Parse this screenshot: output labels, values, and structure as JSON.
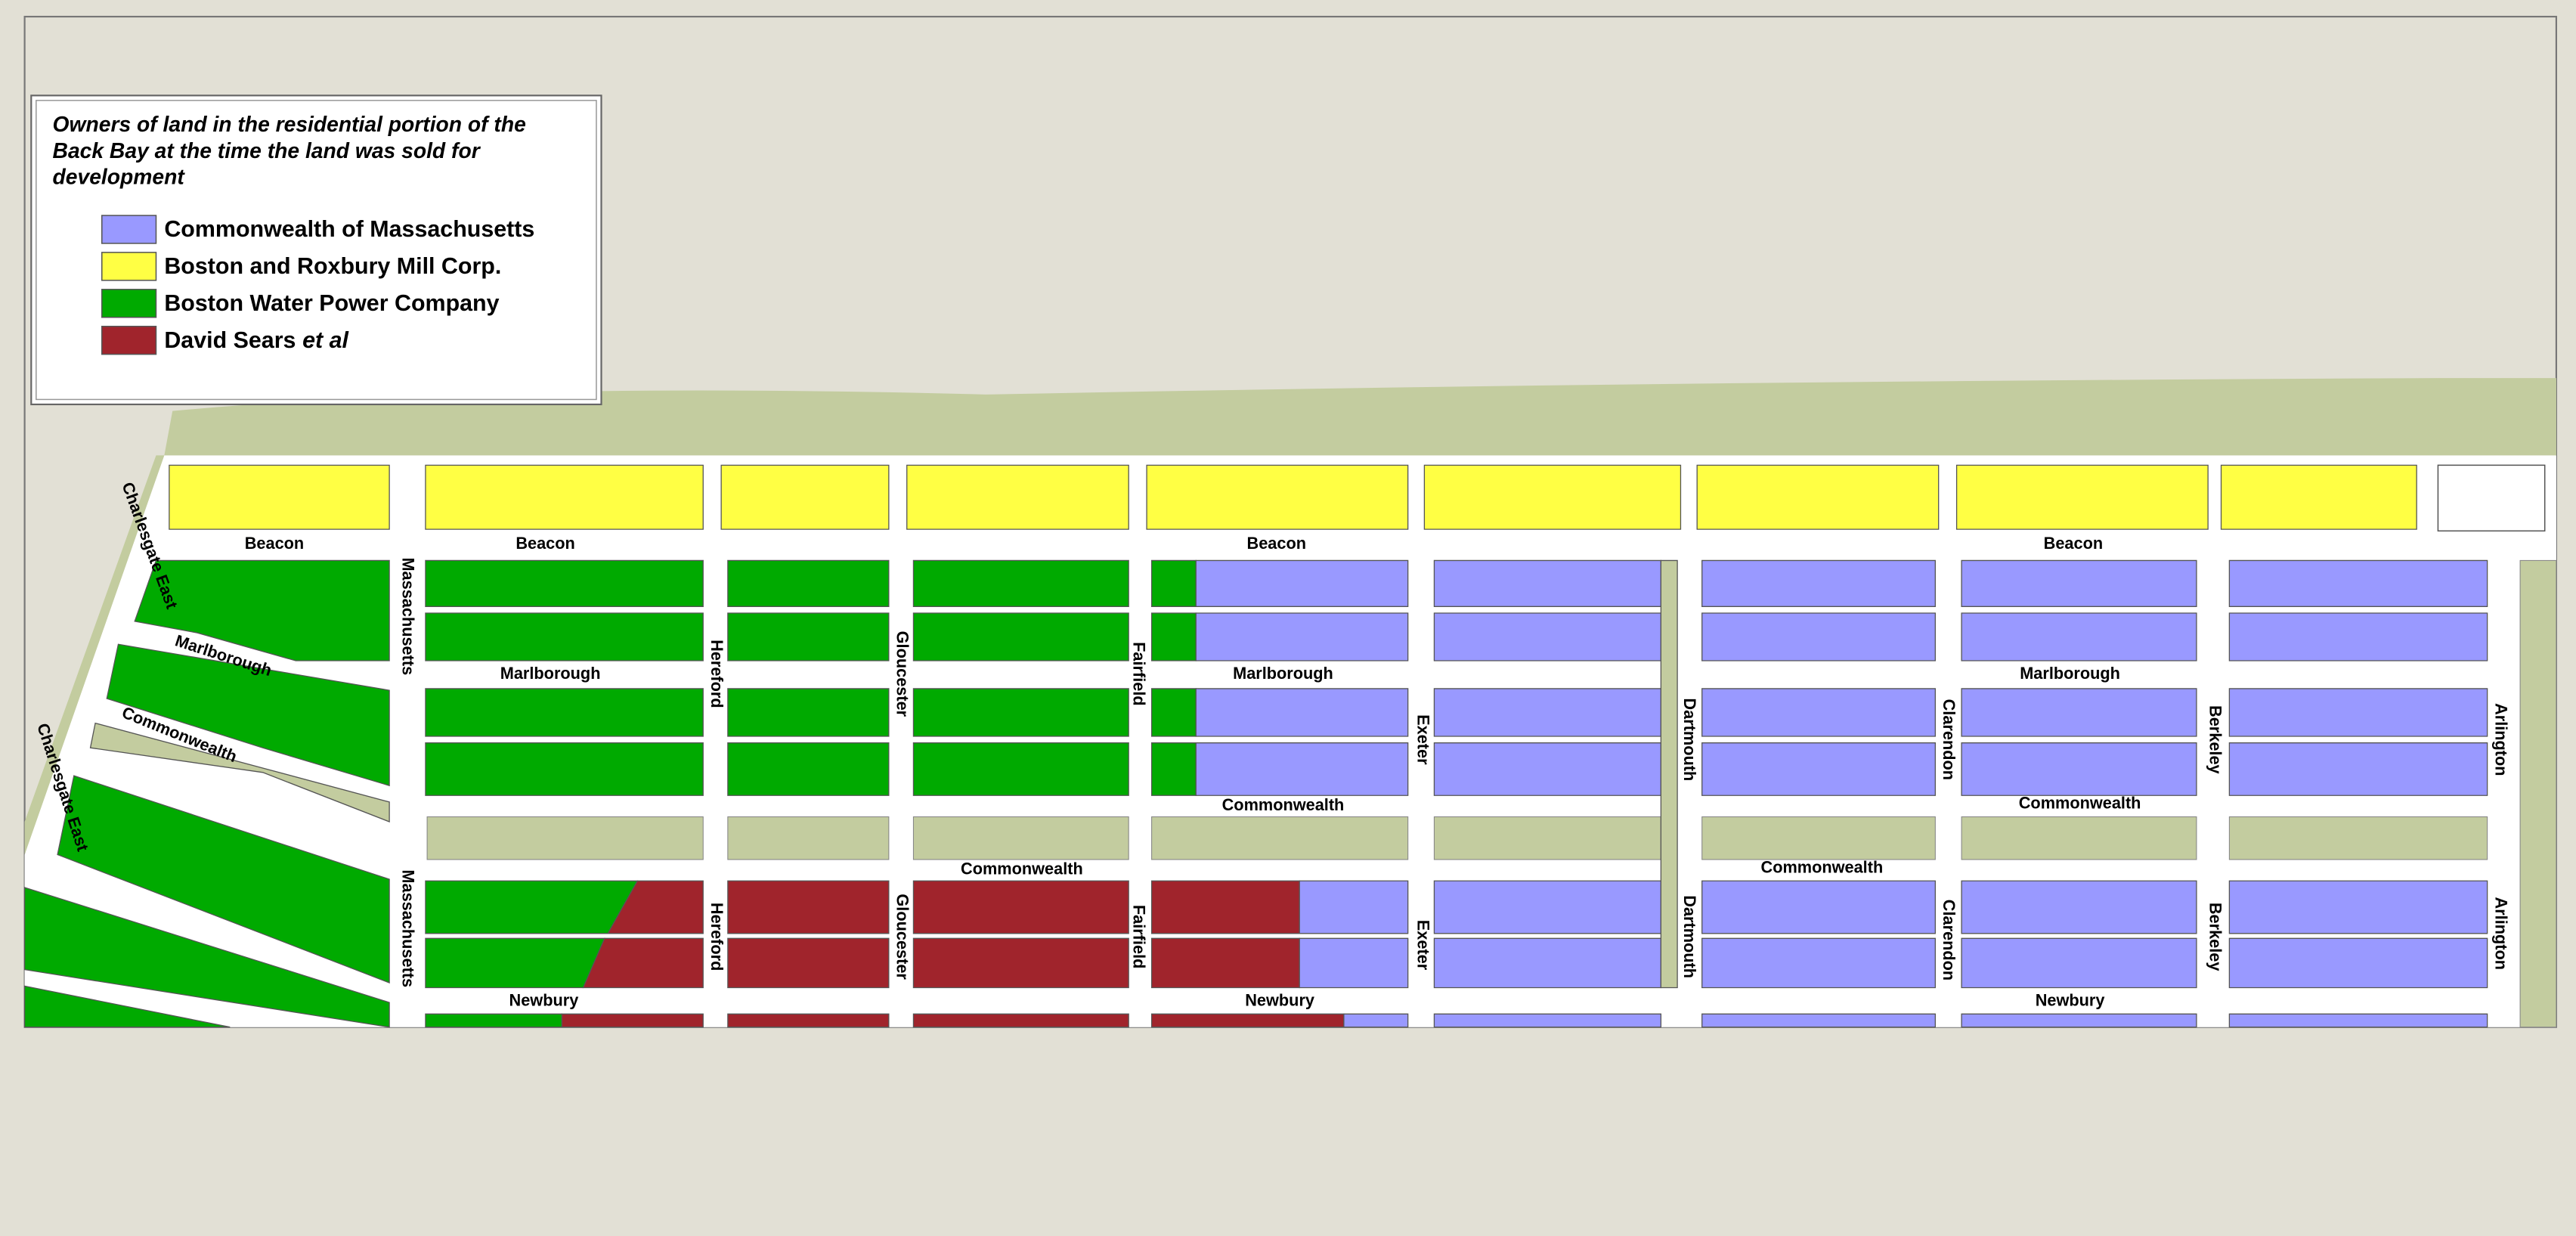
{
  "legend": {
    "title_lines": [
      "Owners of land in the residential portion of the",
      "Back Bay at the time the land was sold for",
      "development"
    ],
    "items": [
      {
        "label": "Commonwealth of Massachusetts",
        "color": "#9999ff"
      },
      {
        "label": "Boston and Roxbury Mill Corp.",
        "color": "#ffff44"
      },
      {
        "label": "Boston Water Power Company",
        "color": "#00aa00"
      },
      {
        "label": "David Sears",
        "label_italic": "et al",
        "color": "#a0242c"
      }
    ]
  },
  "streets": {
    "beacon": "Beacon",
    "marlborough": "Marlborough",
    "commonwealth": "Commonwealth",
    "newbury": "Newbury",
    "charlesgate": "Charlesgate East",
    "massachusetts": "Massachusetts",
    "hereford": "Hereford",
    "gloucester": "Gloucester",
    "fairfield": "Fairfield",
    "exeter": "Exeter",
    "dartmouth": "Dartmouth",
    "clarendon": "Clarendon",
    "berkeley": "Berkeley",
    "arlington": "Arlington"
  }
}
